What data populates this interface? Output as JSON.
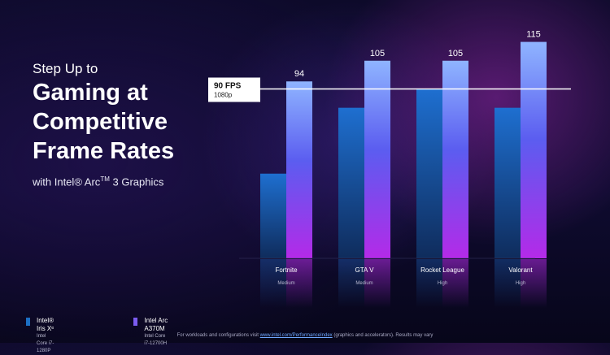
{
  "headline": {
    "pre": "Step Up to",
    "lines": [
      "Gaming at",
      "Competitive",
      "Frame Rates"
    ],
    "sub_prefix": "with Intel",
    "sub_reg": "®",
    "sub_arc": " Arc",
    "sub_tm": "TM",
    "sub_suffix": " 3 Graphics"
  },
  "chart_data": {
    "type": "bar",
    "categories": [
      "Fortnite",
      "GTA V",
      "Rocket League",
      "Valorant"
    ],
    "settings": [
      "Medium",
      "Medium",
      "High",
      "High"
    ],
    "series": [
      {
        "name": "Intel® Iris Xᵉ",
        "values": [
          45,
          80,
          90,
          80
        ],
        "color": "#1c6fc4",
        "show_labels": false
      },
      {
        "name": "Intel Arc A370M",
        "values": [
          94,
          105,
          105,
          115
        ],
        "color": "#7b5cf0",
        "show_labels": true
      }
    ],
    "ylim": [
      0,
      120
    ],
    "reference_line": {
      "value": 90,
      "label": "90 FPS",
      "sublabel": "1080p"
    },
    "legend_placement": "bottom-left"
  },
  "legend": [
    {
      "name": "Intel® Iris Xᵉ",
      "cpu": "Intel Core i7-1280P",
      "color": "#1c6fc4"
    },
    {
      "name": "Intel Arc A370M",
      "cpu": "Intel Core i7-12700H",
      "color": "#7b5cf0"
    }
  ],
  "footnote": {
    "prefix": "For workloads and configurations visit ",
    "link": "www.intel.com/PerformanceIndex",
    "suffix": " (graphics and accelerators).  Results may vary"
  }
}
